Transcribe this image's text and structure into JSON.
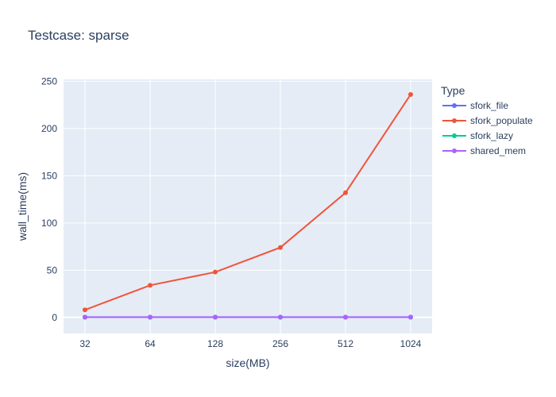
{
  "chart_data": {
    "type": "line",
    "title": "Testcase: sparse",
    "xlabel": "size(MB)",
    "ylabel": "wall_time(ms)",
    "x": [
      32,
      64,
      128,
      256,
      512,
      1024
    ],
    "x_scale": "log2",
    "ylim": [
      -17,
      252
    ],
    "yticks": [
      0,
      50,
      100,
      150,
      200,
      250
    ],
    "grid": true,
    "legend_title": "Type",
    "legend_position": "right",
    "series": [
      {
        "name": "sfork_file",
        "color": "#636efa",
        "values": [
          0.3,
          0.3,
          0.3,
          0.3,
          0.3,
          0.3
        ]
      },
      {
        "name": "sfork_populate",
        "color": "#ef553b",
        "values": [
          8,
          34,
          48,
          74,
          132,
          236
        ]
      },
      {
        "name": "sfork_lazy",
        "color": "#00cc96",
        "values": [
          0.2,
          0.2,
          0.2,
          0.2,
          0.2,
          0.2
        ]
      },
      {
        "name": "shared_mem",
        "color": "#ab63fa",
        "values": [
          0.2,
          0.2,
          0.2,
          0.2,
          0.2,
          0.2
        ]
      }
    ]
  }
}
